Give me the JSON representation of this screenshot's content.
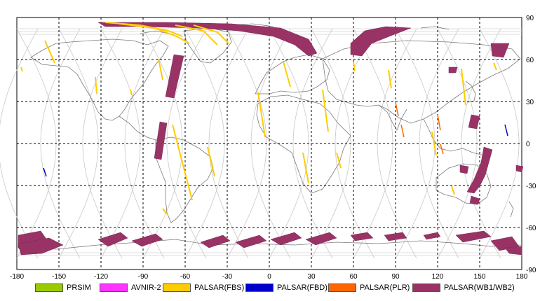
{
  "map": {
    "lon_ticks": [
      "-180",
      "-150",
      "-120",
      "-90",
      "-60",
      "-30",
      "0",
      "30",
      "60",
      "90",
      "120",
      "150",
      "180"
    ],
    "lat_ticks": [
      "90",
      "60",
      "30",
      "0",
      "-30",
      "-60",
      "-90"
    ],
    "colors": {
      "background": "#ffffff",
      "grid": "#000000",
      "coast": "#7a7a7a",
      "orbit": "#c8c8c8",
      "prsim": "#99cc00",
      "avnir2": "#ff33ff",
      "fbs": "#ffcc00",
      "fbd": "#0000cc",
      "plr": "#ff6600",
      "wb": "#993366"
    }
  },
  "legend": {
    "items": [
      {
        "key": "prsim",
        "label": "PRSIM",
        "color": "#99cc00"
      },
      {
        "key": "avnir2",
        "label": "AVNIR-2",
        "color": "#ff33ff"
      },
      {
        "key": "fbs",
        "label": "PALSAR(FBS)",
        "color": "#ffcc00"
      },
      {
        "key": "fbd",
        "label": "PALSAR(FBD)",
        "color": "#0000cc"
      },
      {
        "key": "plr",
        "label": "PALSAR(PLR)",
        "color": "#ff6600"
      },
      {
        "key": "wb",
        "label": "PALSAR(WB1/WB2)",
        "color": "#993366"
      }
    ]
  }
}
